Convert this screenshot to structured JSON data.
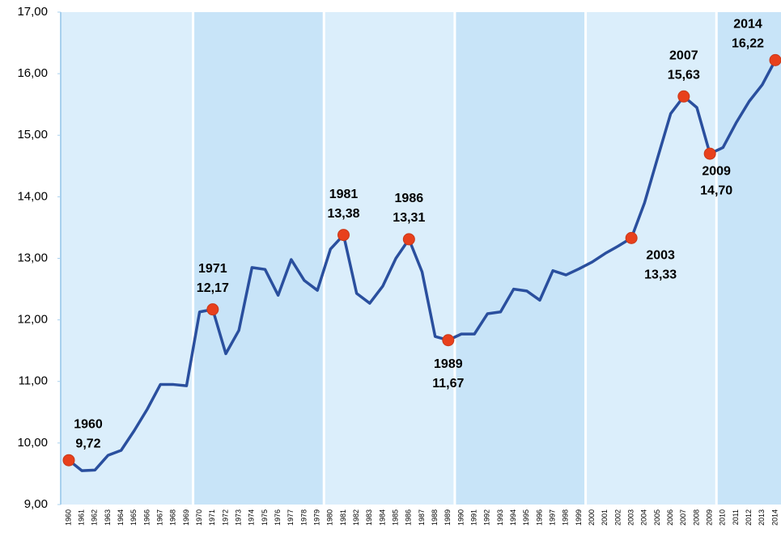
{
  "chart_data": {
    "type": "line",
    "categories": [
      "1960",
      "1961",
      "1962",
      "1963",
      "1964",
      "1965",
      "1966",
      "1967",
      "1968",
      "1969",
      "1970",
      "1971",
      "1972",
      "1973",
      "1974",
      "1975",
      "1976",
      "1977",
      "1978",
      "1979",
      "1980",
      "1981",
      "1982",
      "1983",
      "1984",
      "1985",
      "1986",
      "1987",
      "1988",
      "1989",
      "1990",
      "1991",
      "1992",
      "1993",
      "1994",
      "1995",
      "1996",
      "1997",
      "1998",
      "1999",
      "2000",
      "2001",
      "2002",
      "2003",
      "2004",
      "2005",
      "2006",
      "2007",
      "2008",
      "2009",
      "2010",
      "2011",
      "2012",
      "2013",
      "2014"
    ],
    "series": [
      {
        "color": "#2a4f9e",
        "values": [
          9.72,
          9.55,
          9.56,
          9.8,
          9.88,
          10.2,
          10.55,
          10.95,
          10.95,
          10.93,
          12.13,
          12.17,
          11.45,
          11.83,
          12.85,
          12.82,
          12.4,
          12.98,
          12.64,
          12.48,
          13.15,
          13.38,
          12.43,
          12.27,
          12.55,
          13.0,
          13.31,
          12.78,
          11.73,
          11.67,
          11.77,
          11.77,
          12.1,
          12.13,
          12.5,
          12.47,
          12.32,
          12.8,
          12.73,
          12.83,
          12.94,
          13.08,
          13.2,
          13.33,
          13.9,
          14.63,
          15.35,
          15.63,
          15.45,
          14.7,
          14.8,
          15.2,
          15.55,
          15.82,
          16.22
        ],
        "value_labels": [
          "9,72",
          null,
          null,
          null,
          null,
          null,
          null,
          null,
          null,
          null,
          null,
          "12,17",
          null,
          null,
          null,
          null,
          null,
          null,
          null,
          null,
          null,
          "13,38",
          null,
          null,
          null,
          null,
          "13,31",
          null,
          null,
          "11,67",
          null,
          null,
          null,
          null,
          null,
          null,
          null,
          null,
          null,
          null,
          null,
          null,
          null,
          "13,33",
          null,
          null,
          null,
          "15,63",
          null,
          "14,70",
          null,
          null,
          null,
          null,
          "16,22"
        ],
        "marker_color": "#e8401c"
      }
    ],
    "ylim": [
      9,
      17
    ],
    "yticks": [
      {
        "value": 9,
        "label": "9,00"
      },
      {
        "value": 10,
        "label": "10,00"
      },
      {
        "value": 11,
        "label": "11,00"
      },
      {
        "value": 12,
        "label": "12,00"
      },
      {
        "value": 13,
        "label": "13,00"
      },
      {
        "value": 14,
        "label": "14,00"
      },
      {
        "value": 15,
        "label": "15,00"
      },
      {
        "value": 16,
        "label": "16,00"
      },
      {
        "value": 17,
        "label": "17,00"
      }
    ]
  }
}
